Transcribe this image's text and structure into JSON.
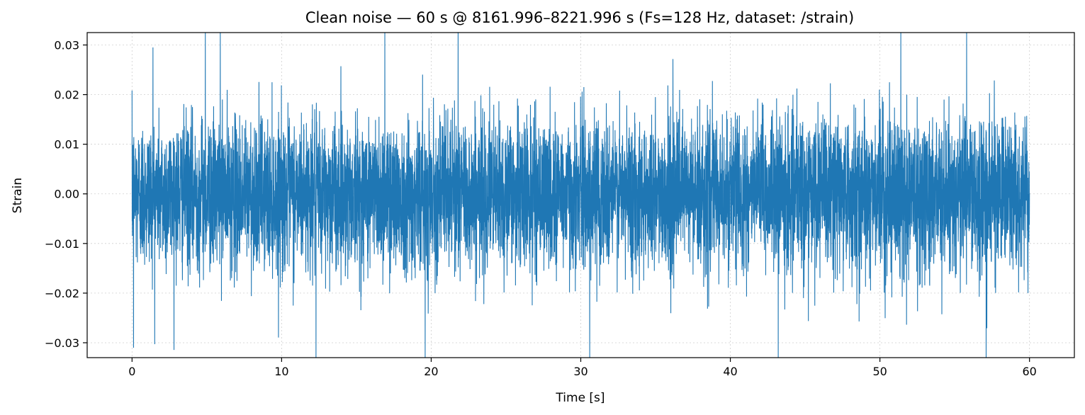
{
  "chart_data": {
    "type": "line",
    "title": "Clean noise — 60 s @ 8161.996–8221.996 s  (Fs=128 Hz, dataset: /strain)",
    "xlabel": "Time [s]",
    "ylabel": "Strain",
    "xlim": [
      -3,
      63
    ],
    "ylim": [
      -0.033,
      0.0325
    ],
    "xticks": [
      0,
      10,
      20,
      30,
      40,
      50,
      60
    ],
    "xtick_labels": [
      "0",
      "10",
      "20",
      "30",
      "40",
      "50",
      "60"
    ],
    "yticks": [
      -0.03,
      -0.02,
      -0.01,
      0.0,
      0.01,
      0.02,
      0.03
    ],
    "ytick_labels": [
      "−0.03",
      "−0.02",
      "−0.01",
      "0.00",
      "0.01",
      "0.02",
      "0.03"
    ],
    "grid": true,
    "sample_rate_hz": 128,
    "series": [
      {
        "color": "#1f77b4",
        "x_start": 0,
        "x_end": 60,
        "std": 0.0075,
        "points_approx": 7680,
        "peaks": [
          {
            "x": 0.1,
            "y": -0.031
          },
          {
            "x": 1.4,
            "y": 0.0295
          },
          {
            "x": 4.9,
            "y": 0.033
          },
          {
            "x": 5.9,
            "y": 0.033
          },
          {
            "x": 12.3,
            "y": -0.033
          },
          {
            "x": 16.9,
            "y": 0.033
          },
          {
            "x": 19.6,
            "y": -0.033
          },
          {
            "x": 21.8,
            "y": 0.033
          },
          {
            "x": 30.6,
            "y": -0.033
          },
          {
            "x": 43.2,
            "y": -0.033
          },
          {
            "x": 51.4,
            "y": 0.033
          },
          {
            "x": 55.8,
            "y": 0.033
          },
          {
            "x": 57.1,
            "y": -0.033
          },
          {
            "x": 59.9,
            "y": -0.02
          }
        ]
      }
    ]
  }
}
